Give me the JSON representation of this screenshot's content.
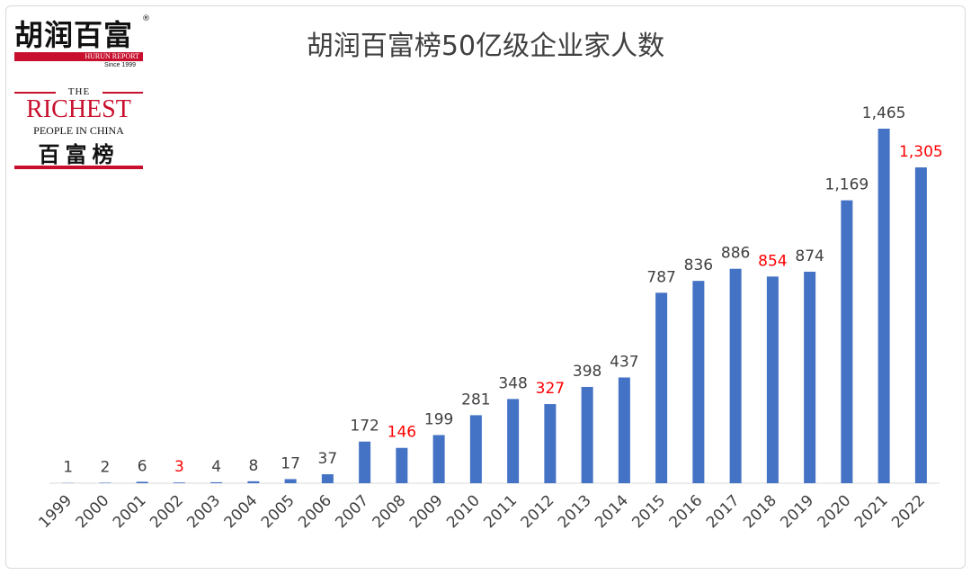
{
  "title": "胡润百富榜50亿级企业家人数",
  "logos": {
    "hurun_cn": "胡润百富",
    "hurun_report": "HURUN REPORT",
    "since": "Since 1999",
    "the": "THE",
    "richest": "RICHEST",
    "people_in_china": "PEOPLE IN CHINA",
    "list_cn": "百富榜"
  },
  "colors": {
    "bar": "#4472C4",
    "label": "#404040",
    "highlight": "#FF0000",
    "axis": "#d9d9d9",
    "brand_red": "#c8102e"
  },
  "chart_data": {
    "type": "bar",
    "title": "胡润百富榜50亿级企业家人数",
    "xlabel": "",
    "ylabel": "",
    "ylim": [
      0,
      1500
    ],
    "grid": false,
    "legend": "none",
    "categories": [
      "1999",
      "2000",
      "2001",
      "2002",
      "2003",
      "2004",
      "2005",
      "2006",
      "2007",
      "2008",
      "2009",
      "2010",
      "2011",
      "2012",
      "2013",
      "2014",
      "2015",
      "2016",
      "2017",
      "2018",
      "2019",
      "2020",
      "2021",
      "2022"
    ],
    "values": [
      1,
      2,
      6,
      3,
      4,
      8,
      17,
      37,
      172,
      146,
      199,
      281,
      348,
      327,
      398,
      437,
      787,
      836,
      886,
      854,
      874,
      1169,
      1465,
      1305
    ],
    "data_labels": [
      "1",
      "2",
      "6",
      "3",
      "4",
      "8",
      "17",
      "37",
      "172",
      "146",
      "199",
      "281",
      "348",
      "327",
      "398",
      "437",
      "787",
      "836",
      "886",
      "854",
      "874",
      "1,169",
      "1,465",
      "1,305"
    ],
    "highlighted": [
      "2002",
      "2008",
      "2012",
      "2018",
      "2022"
    ]
  }
}
